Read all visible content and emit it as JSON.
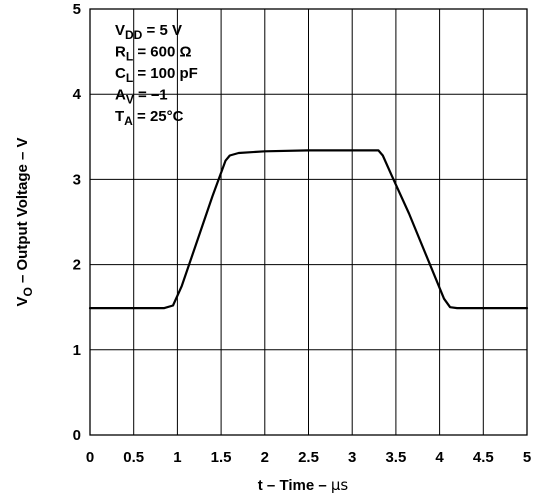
{
  "chart_data": {
    "type": "line",
    "xlabel_main": "t – Time – ",
    "xlabel_unit": "μs",
    "ylabel_var": "V",
    "ylabel_sub": "O",
    "ylabel_rest": " – Output Voltage – V",
    "xlim": [
      0,
      5
    ],
    "ylim": [
      0,
      5
    ],
    "x_ticks": [
      "0",
      "0.5",
      "1",
      "1.5",
      "2",
      "2.5",
      "3",
      "3.5",
      "4",
      "4.5",
      "5"
    ],
    "y_ticks": [
      "0",
      "1",
      "2",
      "3",
      "4",
      "5"
    ],
    "grid": true,
    "annotations": [
      {
        "main": "V",
        "sub": "DD",
        "rest": " = 5 V"
      },
      {
        "main": "R",
        "sub": "L",
        "rest": " = 600 Ω"
      },
      {
        "main": "C",
        "sub": "L",
        "rest": " = 100  pF"
      },
      {
        "main": "A",
        "sub": "V",
        "rest": " = –1"
      },
      {
        "main": "T",
        "sub": "A",
        "rest": " = 25°C"
      }
    ],
    "series": [
      {
        "x": [
          0,
          0.5,
          0.85,
          0.95,
          1.05,
          1.2,
          1.4,
          1.55,
          1.6,
          1.7,
          2.0,
          2.5,
          3.0,
          3.3,
          3.35,
          3.45,
          3.65,
          3.85,
          4.05,
          4.12,
          4.2,
          4.5,
          5.0
        ],
        "y": [
          1.49,
          1.49,
          1.49,
          1.52,
          1.75,
          2.2,
          2.8,
          3.22,
          3.28,
          3.31,
          3.33,
          3.34,
          3.34,
          3.34,
          3.28,
          3.05,
          2.6,
          2.1,
          1.6,
          1.5,
          1.49,
          1.49,
          1.49
        ]
      }
    ]
  }
}
